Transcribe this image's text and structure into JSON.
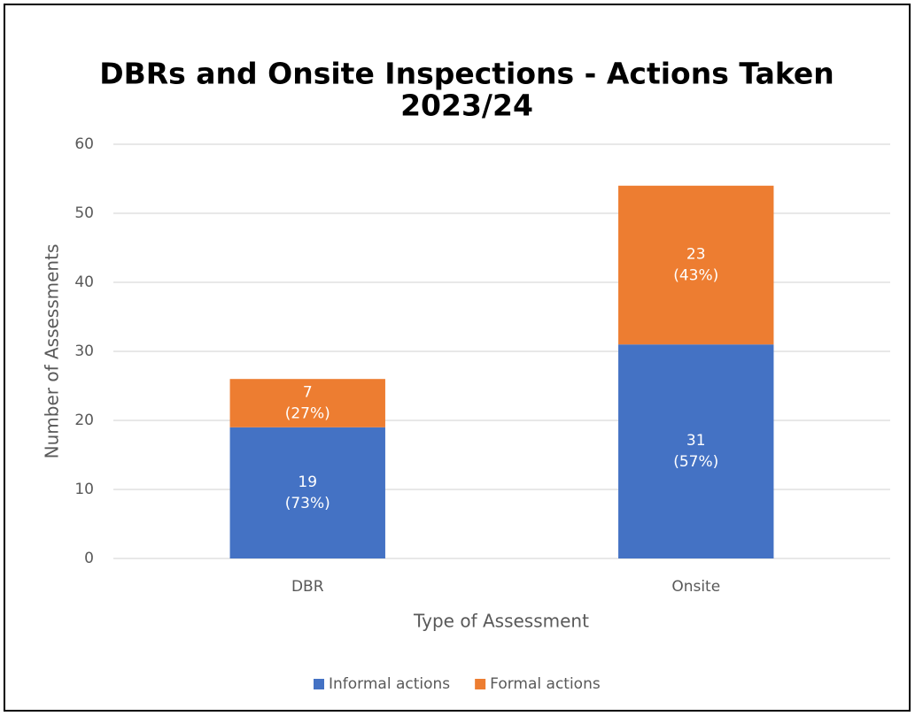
{
  "chart_data": {
    "type": "bar",
    "stacked": true,
    "title": [
      "DBRs and Onsite Inspections - Actions Taken",
      "2023/24"
    ],
    "x_label": "Type of Assessment",
    "y_label": "Number of Assessments",
    "categories": [
      "DBR",
      "Onsite"
    ],
    "series": [
      {
        "name": "Informal actions",
        "color": "#4472c4",
        "values": [
          19,
          31
        ],
        "value_labels": [
          [
            "19",
            "(73%)"
          ],
          [
            "31",
            "(57%)"
          ]
        ]
      },
      {
        "name": "Formal actions",
        "color": "#ed7d31",
        "values": [
          7,
          23
        ],
        "value_labels": [
          [
            "7",
            "(27%)"
          ],
          [
            "23",
            "(43%)"
          ]
        ]
      }
    ],
    "ylim": [
      0,
      60
    ],
    "yticks": [
      0,
      10,
      20,
      30,
      40,
      50,
      60
    ],
    "grid": true,
    "legend": "bottom"
  }
}
